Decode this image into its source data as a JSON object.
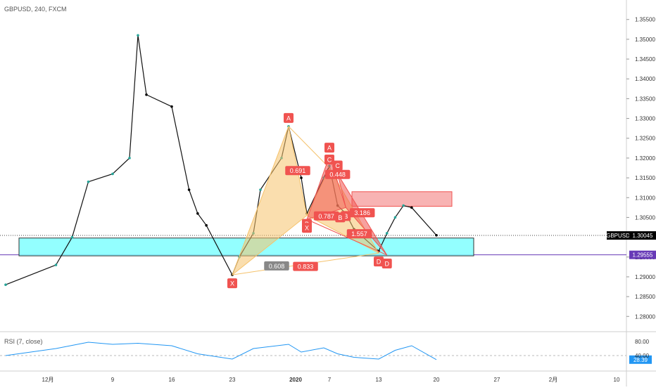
{
  "header": {
    "title": "GBPUSD, 240, FXCM"
  },
  "rsi_label": "RSI (7, close)",
  "colors": {
    "up": "#26a69a",
    "down": "#000000",
    "bullish_pattern": "#f5c26b",
    "bearish_pattern": "#f05350",
    "zone_cyan": "#80ffff",
    "zone_red": "#f7a6a6",
    "rsi_line": "#2196f3",
    "price_badge": "#000000",
    "level_badge": "#673ab7",
    "axis_text": "#333333"
  },
  "chart_data": [
    {
      "type": "line",
      "title": "GBPUSD, 240, FXCM",
      "y_ticks": [
        "1.35500",
        "1.35000",
        "1.34500",
        "1.34000",
        "1.33500",
        "1.33000",
        "1.32500",
        "1.32000",
        "1.31500",
        "1.31000",
        "1.30500",
        "1.30000",
        "1.29500",
        "1.29000",
        "1.28500",
        "1.28000"
      ],
      "x_ticks": [
        "12月",
        "9",
        "16",
        "23",
        "2020",
        "7",
        "13",
        "20",
        "27",
        "2月",
        "10"
      ],
      "ylim": [
        1.2765,
        1.3585
      ],
      "series": [
        {
          "x": [
            "11/28",
            "12/2",
            "12/4",
            "12/6",
            "12/9",
            "12/11",
            "12/12",
            "12/13",
            "12/16",
            "12/18",
            "12/19",
            "12/20",
            "12/23",
            "12/24",
            "12/26",
            "12/27",
            "12/30",
            "12/31",
            "1/2",
            "1/3",
            "1/6",
            "1/7",
            "1/8",
            "1/9",
            "1/10",
            "1/13",
            "1/14",
            "1/15",
            "1/16",
            "1/17",
            "1/20"
          ],
          "values": [
            1.288,
            1.293,
            1.3,
            1.314,
            1.316,
            1.32,
            1.351,
            1.336,
            1.333,
            1.312,
            1.306,
            1.303,
            1.2905,
            1.295,
            1.301,
            1.312,
            1.32,
            1.328,
            1.315,
            1.306,
            1.315,
            1.318,
            1.308,
            1.306,
            1.302,
            1.2965,
            1.301,
            1.305,
            1.308,
            1.3075,
            1.3005
          ]
        }
      ],
      "price_label": {
        "symbol": "GBPUSD",
        "value": "1.30045"
      },
      "level_label": {
        "value": "1.29555"
      },
      "pattern_bullish": {
        "points": [
          {
            "label": "X",
            "date": "12/23",
            "price": 1.2905
          },
          {
            "label": "A",
            "date": "12/31",
            "price": 1.328
          },
          {
            "label": "B",
            "date": "1/3",
            "price": 1.3055
          },
          {
            "label": "C",
            "date": "1/7",
            "price": 1.3175
          },
          {
            "label": "D",
            "date": "1/13",
            "price": 1.296
          }
        ],
        "ratios": [
          "0.691",
          "0.608",
          "0.833"
        ]
      },
      "pattern_bearish": {
        "points": [
          {
            "label": "X",
            "date": "1/3",
            "price": 1.3045
          },
          {
            "label": "A",
            "date": "1/7",
            "price": 1.3205
          },
          {
            "label": "B",
            "date": "1/9",
            "price": 1.3075
          },
          {
            "label": "C",
            "date": "1/8",
            "price": 1.316
          },
          {
            "label": "D",
            "date": "1/14",
            "price": 1.2955
          }
        ],
        "ratios": [
          "0.448",
          "0.787",
          "1.557",
          "3.186"
        ],
        "labels_extra": [
          "B"
        ]
      },
      "zones": [
        {
          "name": "cyan",
          "top": 1.2998,
          "bottom": 1.2953
        },
        {
          "name": "red",
          "top": 1.3115,
          "bottom": 1.3078
        }
      ]
    },
    {
      "type": "line",
      "title": "RSI (7, close)",
      "y_ticks": [
        "80.00",
        "40.00"
      ],
      "ylim": [
        0,
        100
      ],
      "series": [
        {
          "x": [
            "11/28",
            "12/2",
            "12/6",
            "12/9",
            "12/12",
            "12/16",
            "12/19",
            "12/23",
            "12/26",
            "12/31",
            "1/2",
            "1/6",
            "1/8",
            "1/10",
            "1/13",
            "1/15",
            "1/17",
            "1/20"
          ],
          "values": [
            40,
            60,
            78,
            72,
            75,
            68,
            45,
            30,
            60,
            72,
            50,
            62,
            45,
            35,
            30,
            55,
            68,
            28.39
          ]
        }
      ],
      "current_label": "28.39"
    }
  ]
}
